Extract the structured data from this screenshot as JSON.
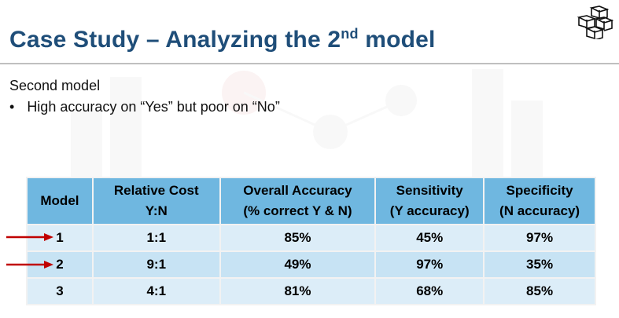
{
  "slide": {
    "title_main": "Case Study – Analyzing the 2",
    "title_sup": "nd",
    "title_end": " model",
    "subtitle": "Second model",
    "bullet_symbol": "•",
    "bullet_text": "High accuracy on “Yes” but poor on “No”"
  },
  "colors": {
    "title": "#1f4e79",
    "header_fill": "#6fb7e0",
    "row_fill": "#c7e3f4",
    "arrow": "#c00000"
  },
  "table": {
    "headers": [
      {
        "line1": "Model",
        "line2": ""
      },
      {
        "line1": "Relative Cost",
        "line2": "Y:N"
      },
      {
        "line1": "Overall Accuracy",
        "line2": "(% correct Y & N)"
      },
      {
        "line1": "Sensitivity",
        "line2": "(Y accuracy)"
      },
      {
        "line1": "Specificity",
        "line2": "(N accuracy)"
      }
    ],
    "rows": [
      {
        "model": "1",
        "cost": "1:1",
        "overall": "85%",
        "sensitivity": "45%",
        "specificity": "97%",
        "highlighted": true
      },
      {
        "model": "2",
        "cost": "9:1",
        "overall": "49%",
        "sensitivity": "97%",
        "specificity": "35%",
        "highlighted": true
      },
      {
        "model": "3",
        "cost": "4:1",
        "overall": "81%",
        "sensitivity": "68%",
        "specificity": "85%",
        "highlighted": false
      }
    ]
  },
  "icons": {
    "logo": "cubes-logo-icon",
    "arrow": "red-arrow-icon"
  }
}
